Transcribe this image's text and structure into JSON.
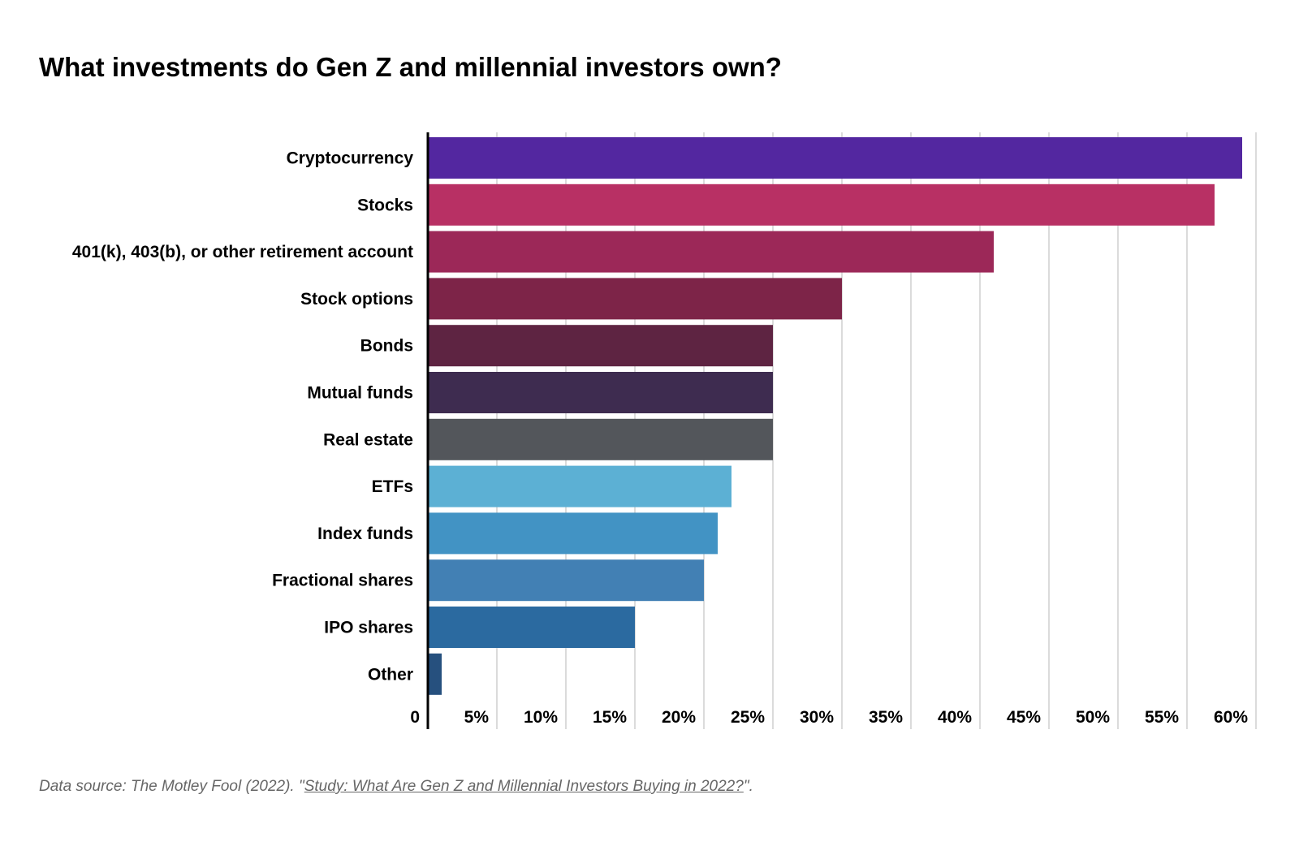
{
  "chart_data": {
    "type": "bar",
    "orientation": "horizontal",
    "title": "What investments do Gen Z and millennial investors own?",
    "xlabel": "",
    "ylabel": "",
    "xlim": [
      0,
      60
    ],
    "grid": true,
    "ticks": [
      "0",
      "5%",
      "10%",
      "15%",
      "20%",
      "25%",
      "30%",
      "35%",
      "40%",
      "45%",
      "50%",
      "55%",
      "60%"
    ],
    "tick_values": [
      0,
      5,
      10,
      15,
      20,
      25,
      30,
      35,
      40,
      45,
      50,
      55,
      60
    ],
    "categories": [
      "Cryptocurrency",
      "Stocks",
      "401(k), 403(b), or other retirement account",
      "Stock options",
      "Bonds",
      "Mutual funds",
      "Real estate",
      "ETFs",
      "Index funds",
      "Fractional shares",
      "IPO shares",
      "Other"
    ],
    "values": [
      59,
      57,
      41,
      30,
      25,
      25,
      25,
      22,
      21,
      20,
      15,
      1
    ],
    "colors": [
      "#5327a0",
      "#b83064",
      "#9c2858",
      "#7d2448",
      "#5e2442",
      "#3e2c50",
      "#53565b",
      "#5cb0d4",
      "#4293c4",
      "#4280b4",
      "#2b6aa0",
      "#26507e"
    ]
  },
  "footnote": {
    "prefix": "Data source: The Motley Fool (2022). \"",
    "link": "Study: What Are Gen Z and Millennial Investors Buying in 2022?",
    "suffix": "\"."
  }
}
